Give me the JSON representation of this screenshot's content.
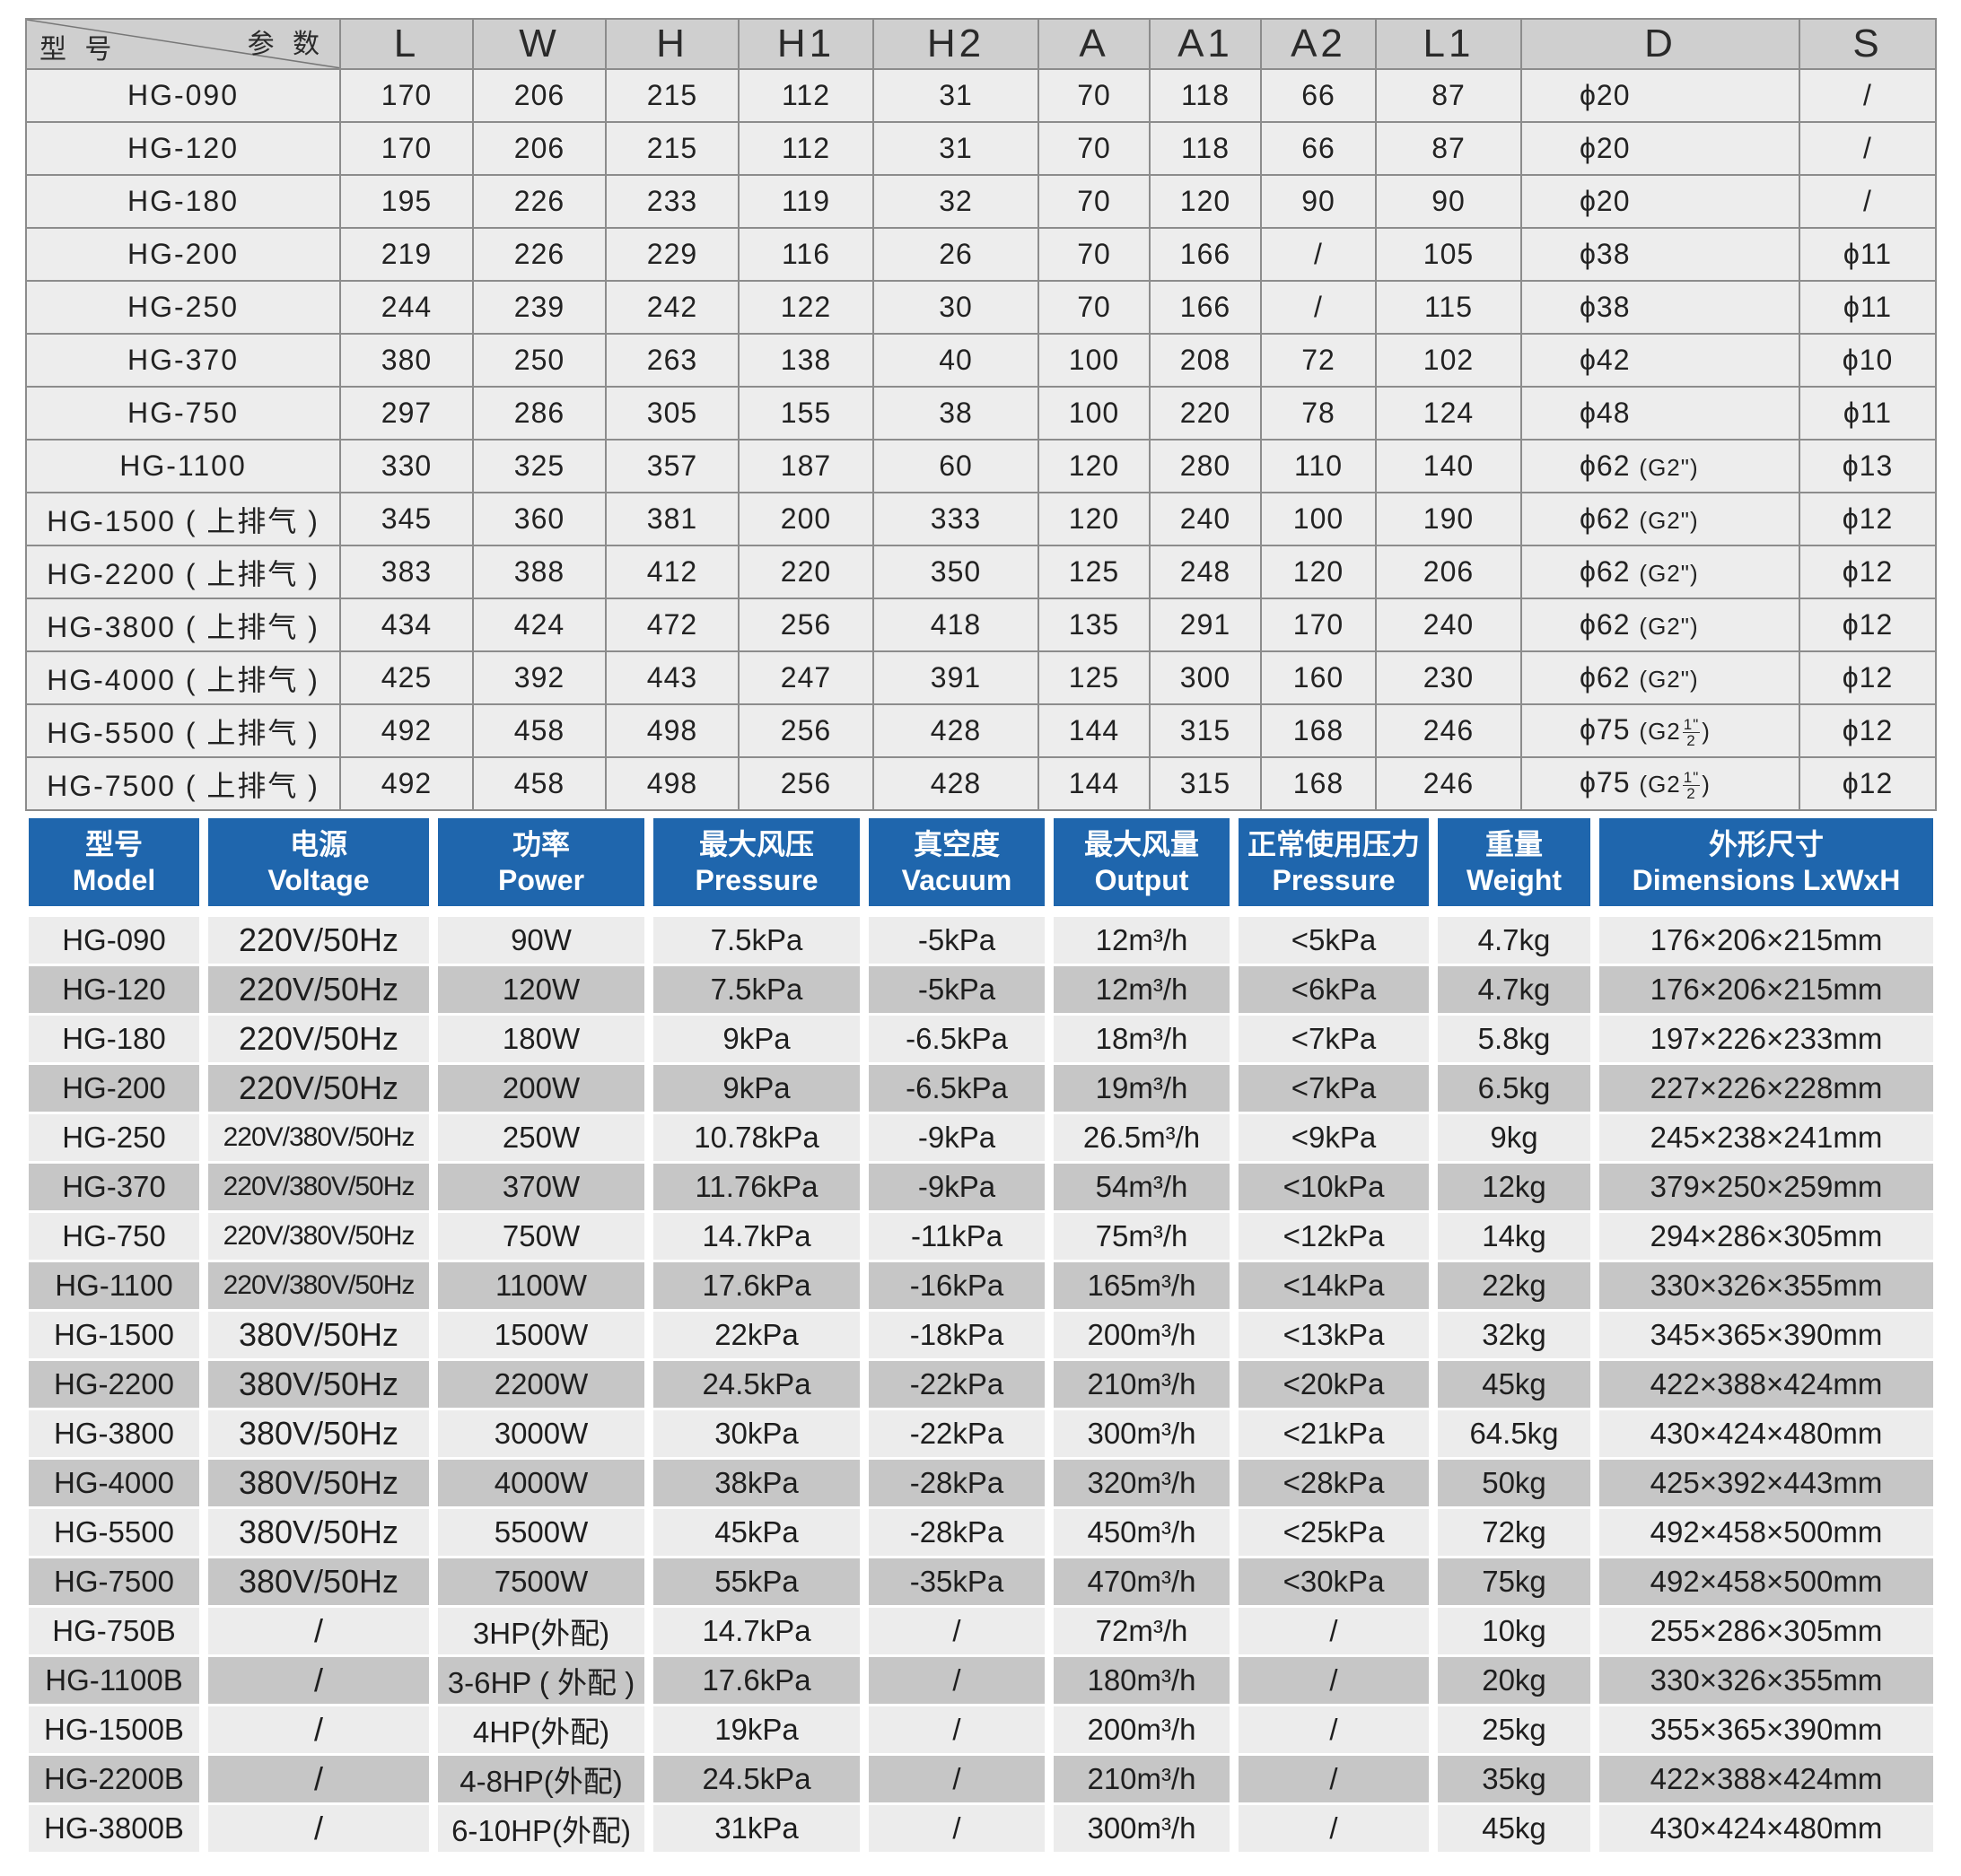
{
  "dimensions_table": {
    "corner_top": "参 数",
    "corner_bottom": "型 号",
    "columns": [
      "L",
      "W",
      "H",
      "H1",
      "H2",
      "A",
      "A1",
      "A2",
      "L1",
      "D",
      "S"
    ],
    "rows": [
      {
        "model": "HG-090",
        "L": "170",
        "W": "206",
        "H": "215",
        "H1": "112",
        "H2": "31",
        "A": "70",
        "A1": "118",
        "A2": "66",
        "L1": "87",
        "D": "ϕ20",
        "D_note": "",
        "S": "/"
      },
      {
        "model": "HG-120",
        "L": "170",
        "W": "206",
        "H": "215",
        "H1": "112",
        "H2": "31",
        "A": "70",
        "A1": "118",
        "A2": "66",
        "L1": "87",
        "D": "ϕ20",
        "D_note": "",
        "S": "/"
      },
      {
        "model": "HG-180",
        "L": "195",
        "W": "226",
        "H": "233",
        "H1": "119",
        "H2": "32",
        "A": "70",
        "A1": "120",
        "A2": "90",
        "L1": "90",
        "D": "ϕ20",
        "D_note": "",
        "S": "/"
      },
      {
        "model": "HG-200",
        "L": "219",
        "W": "226",
        "H": "229",
        "H1": "116",
        "H2": "26",
        "A": "70",
        "A1": "166",
        "A2": "/",
        "L1": "105",
        "D": "ϕ38",
        "D_note": "",
        "S": "ϕ11"
      },
      {
        "model": "HG-250",
        "L": "244",
        "W": "239",
        "H": "242",
        "H1": "122",
        "H2": "30",
        "A": "70",
        "A1": "166",
        "A2": "/",
        "L1": "115",
        "D": "ϕ38",
        "D_note": "",
        "S": "ϕ11"
      },
      {
        "model": "HG-370",
        "L": "380",
        "W": "250",
        "H": "263",
        "H1": "138",
        "H2": "40",
        "A": "100",
        "A1": "208",
        "A2": "72",
        "L1": "102",
        "D": "ϕ42",
        "D_note": "",
        "S": "ϕ10"
      },
      {
        "model": "HG-750",
        "L": "297",
        "W": "286",
        "H": "305",
        "H1": "155",
        "H2": "38",
        "A": "100",
        "A1": "220",
        "A2": "78",
        "L1": "124",
        "D": "ϕ48",
        "D_note": "",
        "S": "ϕ11"
      },
      {
        "model": "HG-1100",
        "L": "330",
        "W": "325",
        "H": "357",
        "H1": "187",
        "H2": "60",
        "A": "120",
        "A1": "280",
        "A2": "110",
        "L1": "140",
        "D": "ϕ62",
        "D_note": "(G2\")",
        "S": "ϕ13"
      },
      {
        "model": "HG-1500 ( 上排气 )",
        "L": "345",
        "W": "360",
        "H": "381",
        "H1": "200",
        "H2": "333",
        "A": "120",
        "A1": "240",
        "A2": "100",
        "L1": "190",
        "D": "ϕ62",
        "D_note": "(G2\")",
        "S": "ϕ12"
      },
      {
        "model": "HG-2200 ( 上排气 )",
        "L": "383",
        "W": "388",
        "H": "412",
        "H1": "220",
        "H2": "350",
        "A": "125",
        "A1": "248",
        "A2": "120",
        "L1": "206",
        "D": "ϕ62",
        "D_note": "(G2\")",
        "S": "ϕ12"
      },
      {
        "model": "HG-3800 ( 上排气 )",
        "L": "434",
        "W": "424",
        "H": "472",
        "H1": "256",
        "H2": "418",
        "A": "135",
        "A1": "291",
        "A2": "170",
        "L1": "240",
        "D": "ϕ62",
        "D_note": "(G2\")",
        "S": "ϕ12"
      },
      {
        "model": "HG-4000 ( 上排气 )",
        "L": "425",
        "W": "392",
        "H": "443",
        "H1": "247",
        "H2": "391",
        "A": "125",
        "A1": "300",
        "A2": "160",
        "L1": "230",
        "D": "ϕ62",
        "D_note": "(G2\")",
        "S": "ϕ12"
      },
      {
        "model": "HG-5500 ( 上排气 )",
        "L": "492",
        "W": "458",
        "H": "498",
        "H1": "256",
        "H2": "428",
        "A": "144",
        "A1": "315",
        "A2": "168",
        "L1": "246",
        "D": "ϕ75",
        "D_note": "(G2",
        "D_frac_num": "1\"",
        "D_frac_den": "2",
        "D_close": ")",
        "S": "ϕ12"
      },
      {
        "model": "HG-7500 ( 上排气 )",
        "L": "492",
        "W": "458",
        "H": "498",
        "H1": "256",
        "H2": "428",
        "A": "144",
        "A1": "315",
        "A2": "168",
        "L1": "246",
        "D": "ϕ75",
        "D_note": "(G2",
        "D_frac_num": "1\"",
        "D_frac_den": "2",
        "D_close": ")",
        "S": "ϕ12"
      }
    ]
  },
  "spec_table": {
    "headers": [
      {
        "cn": "型号",
        "en": "Model"
      },
      {
        "cn": "电源",
        "en": "Voltage"
      },
      {
        "cn": "功率",
        "en": "Power"
      },
      {
        "cn": "最大风压",
        "en": "Pressure"
      },
      {
        "cn": "真空度",
        "en": "Vacuum"
      },
      {
        "cn": "最大风量",
        "en": "Output"
      },
      {
        "cn": "正常使用压力",
        "en": "Pressure"
      },
      {
        "cn": "重量",
        "en": "Weight"
      },
      {
        "cn": "外形尺寸",
        "en": "Dimensions LxWxH"
      }
    ],
    "rows": [
      {
        "model": "HG-090",
        "voltage": "220V/50Hz",
        "power": "90W",
        "pressure": "7.5kPa",
        "vacuum": "-5kPa",
        "output": "12m³/h",
        "normal": "<5kPa",
        "weight": "4.7kg",
        "dims": "176×206×215mm"
      },
      {
        "model": "HG-120",
        "voltage": "220V/50Hz",
        "power": "120W",
        "pressure": "7.5kPa",
        "vacuum": "-5kPa",
        "output": "12m³/h",
        "normal": "<6kPa",
        "weight": "4.7kg",
        "dims": "176×206×215mm"
      },
      {
        "model": "HG-180",
        "voltage": "220V/50Hz",
        "power": "180W",
        "pressure": "9kPa",
        "vacuum": "-6.5kPa",
        "output": "18m³/h",
        "normal": "<7kPa",
        "weight": "5.8kg",
        "dims": "197×226×233mm"
      },
      {
        "model": "HG-200",
        "voltage": "220V/50Hz",
        "power": "200W",
        "pressure": "9kPa",
        "vacuum": "-6.5kPa",
        "output": "19m³/h",
        "normal": "<7kPa",
        "weight": "6.5kg",
        "dims": "227×226×228mm"
      },
      {
        "model": "HG-250",
        "voltage": "220V/380V/50Hz",
        "power": "250W",
        "pressure": "10.78kPa",
        "vacuum": "-9kPa",
        "output": "26.5m³/h",
        "normal": "<9kPa",
        "weight": "9kg",
        "dims": "245×238×241mm"
      },
      {
        "model": "HG-370",
        "voltage": "220V/380V/50Hz",
        "power": "370W",
        "pressure": "11.76kPa",
        "vacuum": "-9kPa",
        "output": "54m³/h",
        "normal": "<10kPa",
        "weight": "12kg",
        "dims": "379×250×259mm"
      },
      {
        "model": "HG-750",
        "voltage": "220V/380V/50Hz",
        "power": "750W",
        "pressure": "14.7kPa",
        "vacuum": "-11kPa",
        "output": "75m³/h",
        "normal": "<12kPa",
        "weight": "14kg",
        "dims": "294×286×305mm"
      },
      {
        "model": "HG-1100",
        "voltage": "220V/380V/50Hz",
        "power": "1100W",
        "pressure": "17.6kPa",
        "vacuum": "-16kPa",
        "output": "165m³/h",
        "normal": "<14kPa",
        "weight": "22kg",
        "dims": "330×326×355mm"
      },
      {
        "model": "HG-1500",
        "voltage": "380V/50Hz",
        "power": "1500W",
        "pressure": "22kPa",
        "vacuum": "-18kPa",
        "output": "200m³/h",
        "normal": "<13kPa",
        "weight": "32kg",
        "dims": "345×365×390mm"
      },
      {
        "model": "HG-2200",
        "voltage": "380V/50Hz",
        "power": "2200W",
        "pressure": "24.5kPa",
        "vacuum": "-22kPa",
        "output": "210m³/h",
        "normal": "<20kPa",
        "weight": "45kg",
        "dims": "422×388×424mm"
      },
      {
        "model": "HG-3800",
        "voltage": "380V/50Hz",
        "power": "3000W",
        "pressure": "30kPa",
        "vacuum": "-22kPa",
        "output": "300m³/h",
        "normal": "<21kPa",
        "weight": "64.5kg",
        "dims": "430×424×480mm"
      },
      {
        "model": "HG-4000",
        "voltage": "380V/50Hz",
        "power": "4000W",
        "pressure": "38kPa",
        "vacuum": "-28kPa",
        "output": "320m³/h",
        "normal": "<28kPa",
        "weight": "50kg",
        "dims": "425×392×443mm"
      },
      {
        "model": "HG-5500",
        "voltage": "380V/50Hz",
        "power": "5500W",
        "pressure": "45kPa",
        "vacuum": "-28kPa",
        "output": "450m³/h",
        "normal": "<25kPa",
        "weight": "72kg",
        "dims": "492×458×500mm"
      },
      {
        "model": "HG-7500",
        "voltage": "380V/50Hz",
        "power": "7500W",
        "pressure": "55kPa",
        "vacuum": "-35kPa",
        "output": "470m³/h",
        "normal": "<30kPa",
        "weight": "75kg",
        "dims": "492×458×500mm"
      },
      {
        "model": "HG-750B",
        "voltage": "/",
        "power": "3HP(外配)",
        "pressure": "14.7kPa",
        "vacuum": "/",
        "output": "72m³/h",
        "normal": "/",
        "weight": "10kg",
        "dims": "255×286×305mm"
      },
      {
        "model": "HG-1100B",
        "voltage": "/",
        "power": "3-6HP ( 外配 )",
        "pressure": "17.6kPa",
        "vacuum": "/",
        "output": "180m³/h",
        "normal": "/",
        "weight": "20kg",
        "dims": "330×326×355mm"
      },
      {
        "model": "HG-1500B",
        "voltage": "/",
        "power": "4HP(外配)",
        "pressure": "19kPa",
        "vacuum": "/",
        "output": "200m³/h",
        "normal": "/",
        "weight": "25kg",
        "dims": "355×365×390mm"
      },
      {
        "model": "HG-2200B",
        "voltage": "/",
        "power": "4-8HP(外配)",
        "pressure": "24.5kPa",
        "vacuum": "/",
        "output": "210m³/h",
        "normal": "/",
        "weight": "35kg",
        "dims": "422×388×424mm"
      },
      {
        "model": "HG-3800B",
        "voltage": "/",
        "power": "6-10HP(外配)",
        "pressure": "31kPa",
        "vacuum": "/",
        "output": "300m³/h",
        "normal": "/",
        "weight": "45kg",
        "dims": "430×424×480mm"
      }
    ]
  }
}
